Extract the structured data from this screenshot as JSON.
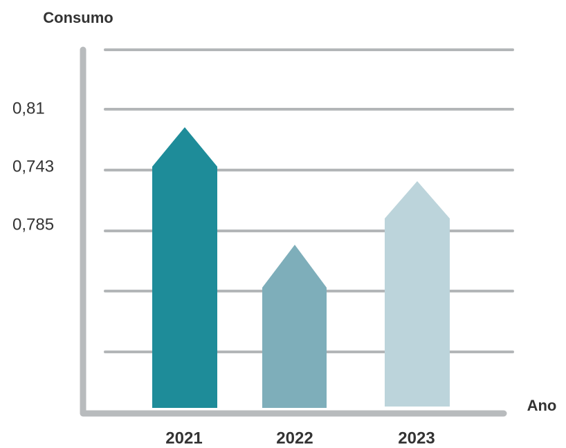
{
  "title": "Consumo",
  "x_axis_label": "Ano",
  "y_labels": [
    "0,81",
    "0,743",
    "0,785"
  ],
  "categories": [
    "2021",
    "2022",
    "2023"
  ]
}
